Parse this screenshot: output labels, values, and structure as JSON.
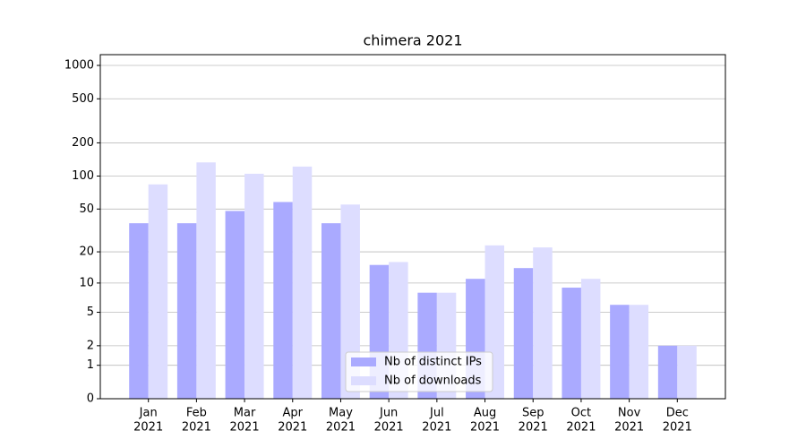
{
  "chart_data": {
    "type": "bar",
    "title": "chimera 2021",
    "categories": [
      [
        "Jan",
        "2021"
      ],
      [
        "Feb",
        "2021"
      ],
      [
        "Mar",
        "2021"
      ],
      [
        "Apr",
        "2021"
      ],
      [
        "May",
        "2021"
      ],
      [
        "Jun",
        "2021"
      ],
      [
        "Jul",
        "2021"
      ],
      [
        "Aug",
        "2021"
      ],
      [
        "Sep",
        "2021"
      ],
      [
        "Oct",
        "2021"
      ],
      [
        "Nov",
        "2021"
      ],
      [
        "Dec",
        "2021"
      ]
    ],
    "series": [
      {
        "name": "Nb of distinct IPs",
        "color": "#aaaaff",
        "values": [
          37,
          37,
          48,
          58,
          37,
          15,
          8,
          11,
          14,
          9,
          6,
          2
        ]
      },
      {
        "name": "Nb of downloads",
        "color": "#ddddff",
        "values": [
          84,
          133,
          105,
          122,
          55,
          16,
          8,
          23,
          22,
          11,
          6,
          2
        ]
      }
    ],
    "yscale": "log1p",
    "ylim": [
      0,
      1250
    ],
    "yticks": [
      0,
      1,
      2,
      5,
      10,
      20,
      50,
      100,
      200,
      500,
      1000
    ],
    "grid": true,
    "legend": "lower center"
  }
}
